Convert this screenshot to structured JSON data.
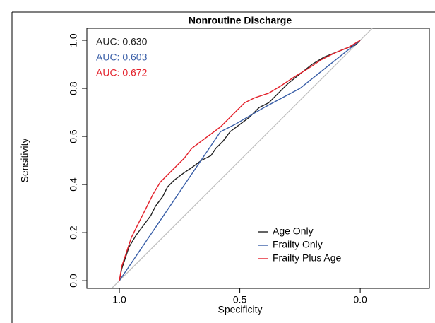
{
  "chart_data": {
    "type": "line",
    "title": "Nonroutine Discharge",
    "xlabel": "Specificity",
    "ylabel": "Sensitivity",
    "xlim": [
      1.135,
      -0.287
    ],
    "ylim": [
      -0.032,
      1.05
    ],
    "xticks": [
      {
        "value": 1,
        "label": "1.0"
      },
      0.5,
      {
        "value": 0,
        "label": "0.0"
      }
    ],
    "yticks": [
      {
        "value": 0,
        "label": "0.0"
      },
      0.2,
      0.4,
      0.6,
      0.8,
      {
        "value": 1,
        "label": "1.0"
      }
    ],
    "annotations": [
      {
        "text": "AUC: 0.630",
        "color": "#222222"
      },
      {
        "text": "AUC: 0.603",
        "color": "#3a5fa8"
      },
      {
        "text": "AUC: 0.672",
        "color": "#e3202a"
      }
    ],
    "legend_position": "lower right",
    "series": [
      {
        "name": "Age Only",
        "color": "#222222",
        "x": [
          1,
          0.99,
          0.98,
          0.96,
          0.93,
          0.9,
          0.87,
          0.85,
          0.82,
          0.8,
          0.77,
          0.73,
          0.7,
          0.66,
          0.62,
          0.6,
          0.57,
          0.54,
          0.5,
          0.46,
          0.42,
          0.38,
          0.34,
          0.3,
          0.25,
          0.2,
          0.15,
          0.1,
          0.05,
          0.02,
          0
        ],
        "values": [
          0,
          0.05,
          0.08,
          0.14,
          0.19,
          0.23,
          0.27,
          0.31,
          0.35,
          0.39,
          0.42,
          0.45,
          0.47,
          0.5,
          0.52,
          0.55,
          0.58,
          0.62,
          0.65,
          0.68,
          0.72,
          0.74,
          0.78,
          0.82,
          0.86,
          0.9,
          0.93,
          0.95,
          0.97,
          0.98,
          1
        ]
      },
      {
        "name": "Frailty Only",
        "color": "#3a5fa8",
        "x": [
          1,
          0.58,
          0.52,
          0.4,
          0.25,
          0.1,
          0
        ],
        "values": [
          0,
          0.62,
          0.65,
          0.72,
          0.8,
          0.92,
          1
        ]
      },
      {
        "name": "Frailty Plus Age",
        "color": "#e3202a",
        "x": [
          1,
          0.99,
          0.97,
          0.95,
          0.92,
          0.89,
          0.86,
          0.83,
          0.8,
          0.77,
          0.73,
          0.7,
          0.66,
          0.62,
          0.58,
          0.55,
          0.52,
          0.48,
          0.44,
          0.38,
          0.33,
          0.27,
          0.22,
          0.16,
          0.1,
          0.05,
          0
        ],
        "values": [
          0,
          0.06,
          0.12,
          0.18,
          0.24,
          0.3,
          0.36,
          0.41,
          0.44,
          0.47,
          0.51,
          0.55,
          0.58,
          0.61,
          0.64,
          0.67,
          0.7,
          0.74,
          0.76,
          0.78,
          0.81,
          0.85,
          0.88,
          0.92,
          0.95,
          0.97,
          1
        ]
      }
    ]
  }
}
